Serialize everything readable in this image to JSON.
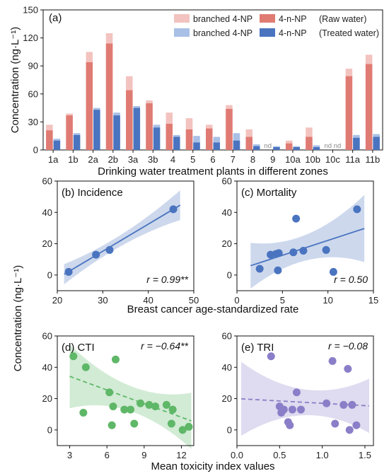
{
  "ylabel_top": "Concentration (ng·L⁻¹)",
  "ylabel_bottom": "Concentration (ng·L⁻¹)",
  "chart_data": [
    {
      "type": "bar",
      "panel": "(a)",
      "xlabel": "Drinking water treatment plants in different zones",
      "ylim": [
        0,
        150
      ],
      "yticks": [
        0,
        30,
        60,
        90,
        120,
        150
      ],
      "categories": [
        "1a",
        "1b",
        "2a",
        "2b",
        "3a",
        "3b",
        "4",
        "5",
        "6",
        "7",
        "8",
        "9",
        "10a",
        "10b",
        "10c",
        "11a",
        "11b"
      ],
      "series": [
        {
          "name": "branched 4-NP",
          "group": "Raw water",
          "color": "#f3c3bf",
          "values": [
            27,
            39,
            105,
            125,
            79,
            53,
            40,
            34,
            27,
            48,
            22,
            0,
            10,
            24,
            0,
            87,
            102
          ]
        },
        {
          "name": "4-n-NP",
          "group": "Raw water",
          "color": "#e07b73",
          "values": [
            21,
            37,
            94,
            114,
            64,
            50,
            28,
            22,
            23,
            44,
            14,
            0,
            7,
            14,
            0,
            79,
            92
          ]
        },
        {
          "name": "branched 4-NP",
          "group": "Treated water",
          "color": "#a9c0e6",
          "values": [
            12,
            18,
            45,
            40,
            47,
            27,
            16,
            15,
            14,
            18,
            6,
            4,
            4,
            5,
            0,
            16,
            17
          ]
        },
        {
          "name": "4-n-NP",
          "group": "Treated water",
          "color": "#4a74bf",
          "values": [
            10,
            16,
            43,
            37,
            45,
            24,
            14,
            8,
            8,
            10,
            4,
            3,
            3,
            3,
            0,
            13,
            14
          ]
        }
      ],
      "nd_labels": [
        {
          "category": "9",
          "text": "nd"
        },
        {
          "category": "10c",
          "text": "nd nd"
        }
      ],
      "legend": {
        "position": "top-right",
        "entries": [
          {
            "text": "branched 4-NP",
            "color": "#f3c3bf"
          },
          {
            "text": "4-n-NP",
            "color": "#e07b73",
            "note": "(Raw water)"
          },
          {
            "text": "branched 4-NP",
            "color": "#a9c0e6"
          },
          {
            "text": "4-n-NP",
            "color": "#4a74bf",
            "note": "(Treated water)"
          }
        ]
      }
    },
    {
      "type": "scatter",
      "panel": "(b) Incidence",
      "stat": "r = 0.99**",
      "xlim": [
        20,
        50
      ],
      "ylim": [
        -10,
        60
      ],
      "xticks": [
        20,
        30,
        40,
        50
      ],
      "yticks": [
        0,
        20,
        40,
        60
      ],
      "color": "#4a74bf",
      "points": [
        [
          22.5,
          2
        ],
        [
          28.5,
          13
        ],
        [
          31.5,
          16
        ],
        [
          45.5,
          42
        ]
      ],
      "fit": {
        "slope": 1.73,
        "intercept": -36.7,
        "x_range": [
          21.5,
          47
        ],
        "style": "solid"
      }
    },
    {
      "type": "scatter",
      "panel": "(c) Mortality",
      "stat": "r = 0.50",
      "xlim": [
        0,
        15
      ],
      "ylim": [
        -10,
        60
      ],
      "xticks": [
        0,
        5,
        10,
        15
      ],
      "yticks": [
        0,
        20,
        40,
        60
      ],
      "color": "#4a74bf",
      "points": [
        [
          2.5,
          4
        ],
        [
          3.7,
          13
        ],
        [
          4.3,
          13.5
        ],
        [
          4.6,
          14
        ],
        [
          4.5,
          3
        ],
        [
          6.2,
          14.5
        ],
        [
          6.5,
          36
        ],
        [
          7.3,
          15.5
        ],
        [
          9.8,
          16
        ],
        [
          10.6,
          2
        ],
        [
          13.2,
          42
        ]
      ],
      "fit": {
        "slope": 1.9,
        "intercept": 3.1,
        "x_range": [
          1.5,
          14
        ],
        "style": "solid"
      }
    },
    {
      "type": "scatter",
      "panel": "(d) CTI",
      "stat": "r = −0.64**",
      "xlabel": "Mean toxicity index values",
      "xlim": [
        2,
        13
      ],
      "ylim": [
        -10,
        60
      ],
      "xticks": [
        3,
        6,
        9,
        12
      ],
      "yticks": [
        0,
        20,
        40,
        60
      ],
      "color": "#5fb768",
      "points": [
        [
          3.3,
          47
        ],
        [
          4.1,
          11
        ],
        [
          4.3,
          40
        ],
        [
          6.2,
          24
        ],
        [
          6.5,
          15
        ],
        [
          6.4,
          3
        ],
        [
          6.7,
          45
        ],
        [
          7.4,
          13
        ],
        [
          7.9,
          13
        ],
        [
          8.2,
          4
        ],
        [
          8.7,
          17
        ],
        [
          9.4,
          16
        ],
        [
          9.9,
          15
        ],
        [
          10.8,
          16
        ],
        [
          11.3,
          13
        ],
        [
          11.2,
          4
        ],
        [
          12.1,
          0
        ],
        [
          12.6,
          2
        ]
      ],
      "fit": {
        "slope": -2.9,
        "intercept": 42.9,
        "x_range": [
          3,
          12.8
        ],
        "style": "dashed"
      }
    },
    {
      "type": "scatter",
      "panel": "(e) TRI",
      "stat": "r = −0.08",
      "xlim": [
        0,
        1.6
      ],
      "ylim": [
        -10,
        60
      ],
      "xticks": [
        0.0,
        0.5,
        1.0,
        1.5
      ],
      "yticks": [
        0,
        20,
        40,
        60
      ],
      "color": "#8b7ec8",
      "points": [
        [
          0.4,
          47
        ],
        [
          0.5,
          15
        ],
        [
          0.52,
          11
        ],
        [
          0.55,
          13
        ],
        [
          0.6,
          5
        ],
        [
          0.62,
          3
        ],
        [
          0.65,
          13
        ],
        [
          0.7,
          24
        ],
        [
          0.75,
          13
        ],
        [
          1.05,
          17
        ],
        [
          1.12,
          44
        ],
        [
          1.15,
          4
        ],
        [
          1.25,
          16
        ],
        [
          1.3,
          39
        ],
        [
          1.32,
          0
        ],
        [
          1.35,
          16
        ],
        [
          1.4,
          3
        ]
      ],
      "fit": {
        "slope": -3.0,
        "intercept": 20.0,
        "x_range": [
          0.05,
          1.55
        ],
        "style": "dashed"
      }
    }
  ],
  "xlabel_middle": "Breast cancer age-standardized rate",
  "xlabel_bottom": "Mean toxicity index values"
}
